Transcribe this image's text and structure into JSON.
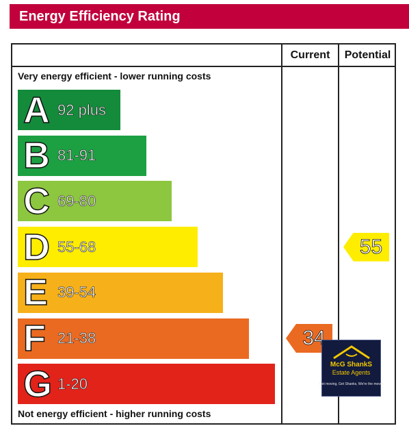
{
  "title": "Energy Efficiency Rating",
  "columns": {
    "current": "Current",
    "potential": "Potential"
  },
  "top_note": "Very energy efficient - lower running costs",
  "bottom_note": "Not energy efficient - higher running costs",
  "bands": [
    {
      "letter": "A",
      "range": "92 plus",
      "color": "#138b3b"
    },
    {
      "letter": "B",
      "range": "81-91",
      "color": "#1ca042"
    },
    {
      "letter": "C",
      "range": "69-80",
      "color": "#8dc63f"
    },
    {
      "letter": "D",
      "range": "55-68",
      "color": "#ffed00"
    },
    {
      "letter": "E",
      "range": "39-54",
      "color": "#f6b019"
    },
    {
      "letter": "F",
      "range": "21-38",
      "color": "#ea6a22"
    },
    {
      "letter": "G",
      "range": "1-20",
      "color": "#e2231a"
    }
  ],
  "current_rating": {
    "value": "34",
    "band": "F",
    "color": "#ea6a22"
  },
  "potential_rating": {
    "value": "55",
    "band": "D",
    "color": "#ffed00"
  },
  "logo": {
    "name": "McG ShankS",
    "subtitle": "Estate Agents",
    "tagline": "Get moving, Get Shanks, We're the mover"
  }
}
